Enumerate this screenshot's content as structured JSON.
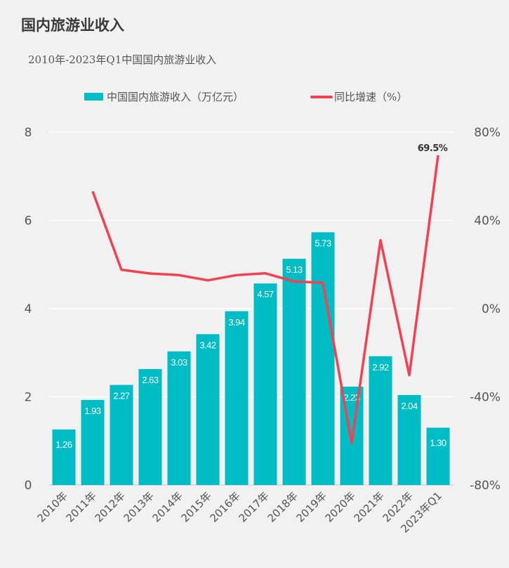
{
  "title": "国内旅游业收入",
  "chart_data": {
    "type": "bar",
    "title": "2010年-2023年Q1中国国内旅游业收入",
    "categories": [
      "2010年",
      "2011年",
      "2012年",
      "2013年",
      "2014年",
      "2015年",
      "2016年",
      "2017年",
      "2018年",
      "2019年",
      "2020年",
      "2021年",
      "2022年",
      "2023年Q1"
    ],
    "series": [
      {
        "name": "中国国内旅游收入（万亿元）",
        "type": "bar",
        "axis": "left",
        "color": "#00bcc4",
        "values": [
          1.26,
          1.93,
          2.27,
          2.63,
          3.03,
          3.42,
          3.94,
          4.57,
          5.13,
          5.73,
          2.23,
          2.92,
          2.04,
          1.3
        ],
        "labels": [
          "1.26",
          "1.93",
          "2.27",
          "2.63",
          "3.03",
          "3.42",
          "3.94",
          "4.57",
          "5.13",
          "5.73",
          "2.23",
          "2.92",
          "2.04",
          "1.30"
        ]
      },
      {
        "name": "同比增速（%）",
        "type": "line",
        "axis": "right",
        "color": "#f24150",
        "values": [
          null,
          53.2,
          17.6,
          15.9,
          15.2,
          12.8,
          15.2,
          16.0,
          12.3,
          11.7,
          -61.1,
          31.0,
          -30.2,
          69.5
        ],
        "annotation": "69.5%"
      }
    ],
    "ylim": [
      0,
      8
    ],
    "yticks": [
      "0",
      "2",
      "4",
      "6",
      "8"
    ],
    "y2lim": [
      -80,
      80
    ],
    "y2ticks": [
      "-80%",
      "-40%",
      "0%",
      "40%",
      "80%"
    ],
    "grid": true,
    "legend": "top-center"
  }
}
